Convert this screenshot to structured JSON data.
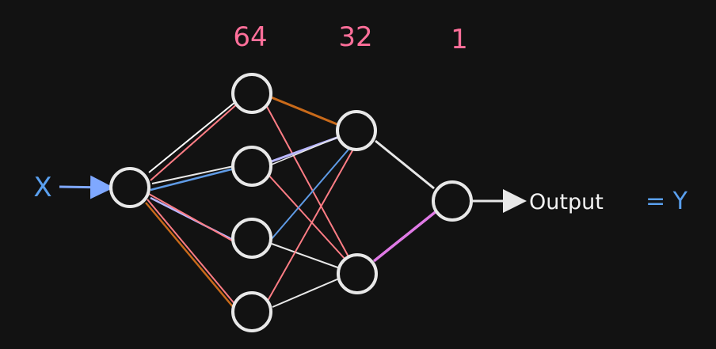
{
  "layers": {
    "l1": "64",
    "l2": "32",
    "l3": "1"
  },
  "input_label": "X",
  "output_label": "Output",
  "output_equals": "= Y",
  "colors": {
    "background": "#121212",
    "node": "#e8e8e8",
    "layer_label": "#ff6f9a",
    "input": "#5aa0ef",
    "edge_pink": "#ff7d85",
    "edge_orange": "#c96a1a",
    "edge_blue": "#5f9be6",
    "edge_lavender": "#b8b6ff",
    "edge_magenta": "#e07ae6",
    "edge_white": "#e8e8e8"
  }
}
